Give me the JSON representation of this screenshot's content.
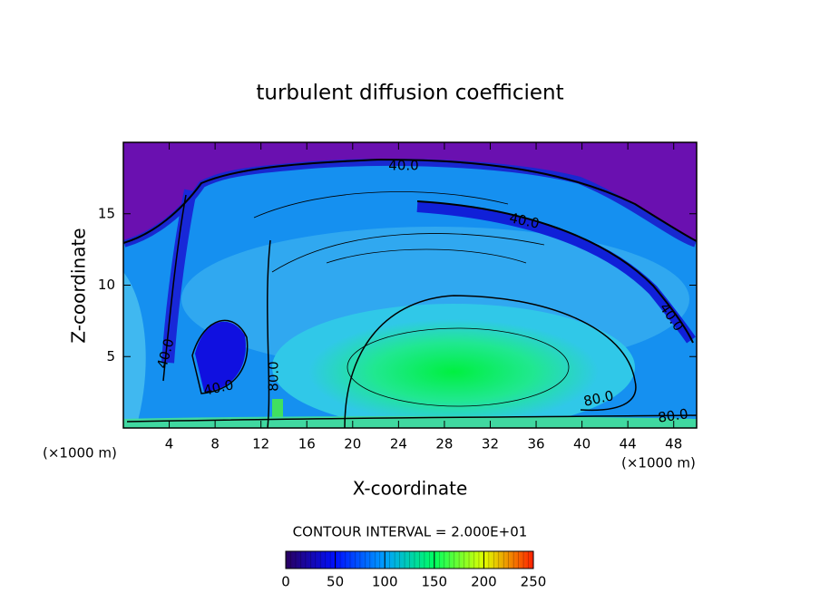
{
  "chart_data": {
    "type": "contour",
    "title": "turbulent diffusion coefficient",
    "x_label": "X-coordinate",
    "y_label": "Z-coordinate",
    "x_unit": "(×1000 m)",
    "y_unit": "(×1000 m)",
    "xlim": [
      0,
      50
    ],
    "xticks": [
      4,
      8,
      12,
      16,
      20,
      24,
      28,
      32,
      36,
      40,
      44,
      48
    ],
    "ylim": [
      0,
      20
    ],
    "yticks": [
      5,
      10,
      15
    ],
    "contour_interval_text": "CONTOUR INTERVAL = 2.000E+01",
    "contour_levels": [
      {
        "value": 40,
        "label": "40.0"
      },
      {
        "value": 80,
        "label": "80.0"
      }
    ],
    "clim": [
      0,
      250
    ],
    "colorbar_ticks": [
      0,
      50,
      100,
      150,
      200,
      250
    ],
    "colormap": [
      "#2a0060",
      "#0010ff",
      "#00a0ff",
      "#00ff60",
      "#e0ff00",
      "#ff2000"
    ]
  }
}
